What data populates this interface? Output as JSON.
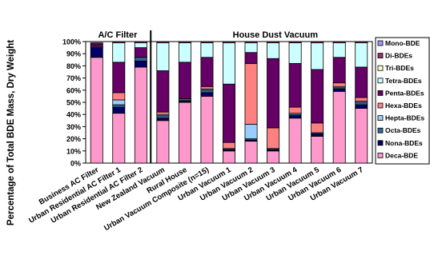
{
  "chart_data": {
    "type": "bar",
    "stacked": true,
    "ylabel": "Percentage of Total BDE Mass, Dry Weight",
    "ylim": [
      0,
      100
    ],
    "yticks": [
      "0%",
      "10%",
      "20%",
      "30%",
      "40%",
      "50%",
      "60%",
      "70%",
      "80%",
      "90%",
      "100%"
    ],
    "group_labels": [
      {
        "label": "A/C Filter",
        "first": 0,
        "last": 2
      },
      {
        "label": "House Dust Vacuum",
        "first": 3,
        "last": 13
      }
    ],
    "categories": [
      "Business AC Filter",
      "Urban Residential AC Filter 1",
      "Urban Residential AC Filter 2",
      "New Zealand Vacuum",
      "Rural House",
      "Urban Vacuum Composite (n=15)",
      "Urban Vacuum 1",
      "Urban Vacuum 2",
      "Urban Vacuum 3",
      "Urban Vacuum 4",
      "Urban Vacuum 5",
      "Urban Vacuum 6",
      "Urban Vacuum  7"
    ],
    "series": [
      {
        "name": "Deca-BDE",
        "color": "#ff99cc",
        "values": [
          87,
          41,
          79,
          35,
          50,
          55,
          10,
          18,
          10,
          37,
          22,
          59,
          45
        ]
      },
      {
        "name": "Nona-BDEs",
        "color": "#000066",
        "values": [
          8,
          5,
          5,
          2,
          1,
          3,
          1,
          1,
          1,
          2,
          2,
          2,
          3
        ]
      },
      {
        "name": "Octa-BDEs",
        "color": "#336699",
        "values": [
          1,
          2,
          3,
          2,
          1,
          2,
          1,
          1,
          1,
          1,
          1,
          1,
          2
        ]
      },
      {
        "name": "Hepta-BDEs",
        "color": "#99ccff",
        "values": [
          0,
          4,
          0,
          1,
          0,
          1,
          0,
          12,
          0,
          1,
          0,
          1,
          1
        ]
      },
      {
        "name": "Hexa-BDEs",
        "color": "#ff8080",
        "values": [
          0,
          6,
          0,
          2,
          1,
          2,
          5,
          50,
          17,
          5,
          8,
          3,
          3
        ]
      },
      {
        "name": "Penta-BDEs",
        "color": "#660066",
        "values": [
          2,
          25,
          8,
          34,
          30,
          24,
          48,
          9,
          57,
          36,
          44,
          21,
          25
        ]
      },
      {
        "name": "Tetra-BDEs",
        "color": "#ccffff",
        "values": [
          0,
          16,
          4,
          23,
          16,
          12,
          34,
          8,
          13,
          17,
          22,
          12,
          20
        ]
      },
      {
        "name": "Tri-BDEs",
        "color": "#ffffcc",
        "values": [
          0,
          0,
          0,
          0,
          0,
          0,
          0,
          0,
          0,
          0,
          0,
          0,
          0
        ]
      },
      {
        "name": "Di-BDEs",
        "color": "#993366",
        "values": [
          1,
          1,
          1,
          1,
          1,
          1,
          1,
          1,
          1,
          1,
          1,
          1,
          1
        ]
      },
      {
        "name": "Mono-BDE",
        "color": "#9999ff",
        "values": [
          0,
          0,
          0,
          0,
          0,
          0,
          0,
          0,
          0,
          0,
          0,
          0,
          0
        ]
      }
    ],
    "legend_order": [
      "Mono-BDE",
      "Di-BDEs",
      "Tri-BDEs",
      "Tetra-BDEs",
      "Penta-BDEs",
      "Hexa-BDEs",
      "Hepta-BDEs",
      "Octa-BDEs",
      "Nona-BDEs",
      "Deca-BDE"
    ],
    "legend_position": "right",
    "grid": false
  }
}
